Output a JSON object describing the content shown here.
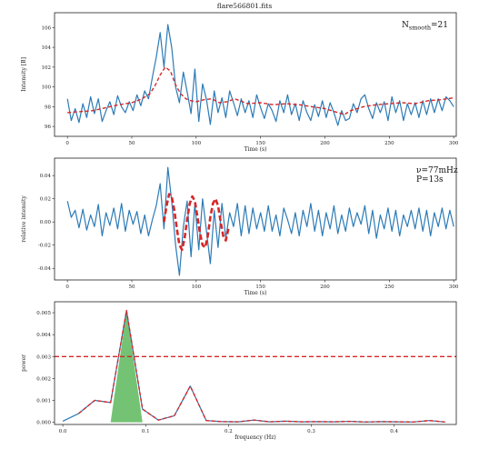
{
  "figure": {
    "title": "flare566801.fits"
  },
  "chart_data": [
    {
      "type": "line",
      "xlabel": "Time (s)",
      "ylabel": "Intensity [B]",
      "xlim": [
        -10,
        302
      ],
      "ylim": [
        95.0,
        107.5
      ],
      "xticks": [
        0,
        50,
        100,
        150,
        200,
        250,
        300
      ],
      "yticks": [
        96,
        98,
        100,
        102,
        104,
        106
      ],
      "annotation": {
        "base": "N",
        "sub": "smooth",
        "rest": "=21"
      },
      "series": [
        {
          "color": "#2c7bb6",
          "style": "solid",
          "x": [
            0,
            3,
            6,
            9,
            12,
            15,
            18,
            21,
            24,
            27,
            30,
            33,
            36,
            39,
            42,
            45,
            48,
            51,
            54,
            57,
            60,
            63,
            66,
            69,
            72,
            75,
            78,
            81,
            84,
            87,
            90,
            93,
            96,
            99,
            102,
            105,
            108,
            111,
            114,
            117,
            120,
            123,
            126,
            129,
            132,
            135,
            138,
            141,
            144,
            147,
            150,
            153,
            156,
            159,
            162,
            165,
            168,
            171,
            174,
            177,
            180,
            183,
            186,
            189,
            192,
            195,
            198,
            201,
            204,
            207,
            210,
            213,
            216,
            219,
            222,
            225,
            228,
            231,
            234,
            237,
            240,
            243,
            246,
            249,
            252,
            255,
            258,
            261,
            264,
            267,
            270,
            273,
            276,
            279,
            282,
            285,
            288,
            291,
            294,
            297,
            300
          ],
          "y": [
            98.8,
            96.6,
            97.8,
            96.4,
            98.3,
            96.9,
            99.0,
            97.3,
            98.8,
            96.5,
            97.6,
            98.5,
            97.2,
            99.1,
            98.0,
            97.4,
            98.5,
            97.6,
            99.2,
            98.1,
            99.6,
            98.8,
            101.0,
            103.0,
            105.5,
            102.0,
            106.3,
            104.0,
            100.0,
            98.4,
            101.5,
            99.5,
            97.3,
            101.8,
            96.5,
            100.3,
            98.7,
            96.2,
            99.6,
            97.4,
            98.9,
            96.9,
            99.6,
            98.4,
            97.1,
            98.8,
            97.4,
            98.6,
            96.9,
            99.2,
            97.9,
            96.8,
            98.3,
            97.6,
            96.5,
            98.6,
            97.4,
            99.2,
            97.2,
            98.3,
            96.6,
            98.6,
            97.4,
            96.6,
            98.2,
            97.0,
            98.6,
            96.9,
            98.4,
            97.4,
            96.1,
            97.6,
            96.6,
            96.8,
            98.3,
            97.4,
            98.8,
            99.2,
            97.8,
            96.8,
            98.4,
            97.4,
            98.5,
            96.6,
            99.0,
            97.4,
            98.6,
            96.6,
            98.3,
            97.2,
            98.4,
            96.9,
            98.6,
            97.2,
            98.8,
            97.4,
            98.8,
            97.6,
            99.0,
            98.6,
            98.0
          ]
        },
        {
          "color": "#d62728",
          "style": "dashed",
          "x": [
            0,
            10,
            20,
            30,
            40,
            50,
            58,
            64,
            68,
            72,
            76,
            80,
            84,
            88,
            92,
            96,
            100,
            106,
            112,
            118,
            124,
            130,
            140,
            150,
            160,
            170,
            180,
            190,
            200,
            210,
            215,
            220,
            230,
            240,
            250,
            260,
            270,
            280,
            290,
            300
          ],
          "y": [
            97.4,
            97.5,
            97.6,
            97.9,
            98.2,
            98.4,
            98.8,
            99.3,
            100.1,
            101.2,
            102.0,
            101.6,
            100.2,
            99.3,
            98.8,
            98.6,
            98.5,
            98.7,
            98.8,
            98.4,
            98.5,
            98.8,
            98.3,
            98.4,
            98.2,
            98.3,
            98.2,
            98.0,
            97.8,
            97.4,
            97.2,
            97.6,
            98.0,
            98.2,
            98.3,
            98.4,
            98.3,
            98.6,
            98.7,
            98.9
          ]
        }
      ]
    },
    {
      "type": "line",
      "xlabel": "Time (s)",
      "ylabel": "relative intensity",
      "xlim": [
        -10,
        302
      ],
      "ylim": [
        -0.05,
        0.055
      ],
      "xticks": [
        0,
        50,
        100,
        150,
        200,
        250,
        300
      ],
      "yticks": [
        -0.04,
        -0.02,
        0.0,
        0.02,
        0.04
      ],
      "annotation_lines": [
        "ν=77mHz",
        "P=13s"
      ],
      "series": [
        {
          "color": "#2c7bb6",
          "style": "solid",
          "x": [
            0,
            3,
            6,
            9,
            12,
            15,
            18,
            21,
            24,
            27,
            30,
            33,
            36,
            39,
            42,
            45,
            48,
            51,
            54,
            57,
            60,
            63,
            66,
            69,
            72,
            75,
            78,
            81,
            84,
            87,
            90,
            93,
            96,
            99,
            102,
            105,
            108,
            111,
            114,
            117,
            120,
            123,
            126,
            129,
            132,
            135,
            138,
            141,
            144,
            147,
            150,
            153,
            156,
            159,
            162,
            165,
            168,
            171,
            174,
            177,
            180,
            183,
            186,
            189,
            192,
            195,
            198,
            201,
            204,
            207,
            210,
            213,
            216,
            219,
            222,
            225,
            228,
            231,
            234,
            237,
            240,
            243,
            246,
            249,
            252,
            255,
            258,
            261,
            264,
            267,
            270,
            273,
            276,
            279,
            282,
            285,
            288,
            291,
            294,
            297,
            300
          ],
          "y": [
            0.018,
            0.004,
            0.01,
            -0.005,
            0.011,
            -0.007,
            0.006,
            -0.004,
            0.015,
            -0.012,
            0.008,
            -0.003,
            0.012,
            -0.006,
            0.016,
            -0.008,
            0.01,
            -0.002,
            0.009,
            -0.01,
            0.006,
            -0.012,
            0.002,
            0.014,
            0.033,
            -0.006,
            0.047,
            0.018,
            -0.02,
            -0.046,
            -0.004,
            0.018,
            -0.03,
            0.016,
            -0.024,
            0.02,
            -0.008,
            -0.036,
            0.01,
            -0.022,
            0.016,
            -0.014,
            0.008,
            -0.004,
            0.016,
            -0.012,
            0.014,
            -0.01,
            0.012,
            -0.006,
            0.008,
            -0.008,
            0.014,
            -0.008,
            0.006,
            -0.012,
            0.012,
            0.002,
            -0.01,
            0.008,
            -0.012,
            0.01,
            -0.004,
            0.016,
            -0.008,
            0.01,
            -0.012,
            0.008,
            -0.006,
            0.014,
            -0.01,
            0.006,
            -0.008,
            0.012,
            -0.004,
            0.008,
            -0.002,
            0.014,
            -0.01,
            0.01,
            -0.014,
            0.006,
            -0.006,
            0.012,
            -0.008,
            0.01,
            -0.012,
            0.006,
            -0.004,
            0.01,
            -0.006,
            0.012,
            -0.008,
            0.01,
            -0.012,
            0.008,
            -0.004,
            0.012,
            -0.006,
            0.01,
            -0.004
          ]
        },
        {
          "color": "#d62728",
          "style": "dashed",
          "x": [
            75,
            77,
            79,
            81,
            83,
            85,
            87,
            89,
            91,
            93,
            95,
            97,
            99,
            101,
            103,
            105,
            107,
            109,
            111,
            113,
            115,
            117,
            119,
            121,
            123,
            125
          ],
          "y": [
            0.0,
            0.014,
            0.024,
            0.022,
            0.01,
            -0.006,
            -0.02,
            -0.024,
            -0.014,
            0.002,
            0.016,
            0.022,
            0.018,
            0.004,
            -0.01,
            -0.02,
            -0.022,
            -0.012,
            0.004,
            0.016,
            0.02,
            0.014,
            0.0,
            -0.012,
            -0.016,
            -0.006
          ]
        }
      ]
    },
    {
      "type": "line",
      "xlabel": "frequency (Hz)",
      "ylabel": "power",
      "xlim": [
        -0.01,
        0.475
      ],
      "ylim": [
        -0.0001,
        0.0055
      ],
      "xticks": [
        0.0,
        0.1,
        0.2,
        0.3,
        0.4
      ],
      "yticks": [
        0.0,
        0.001,
        0.002,
        0.003,
        0.004,
        0.005
      ],
      "threshold": 0.003,
      "series": [
        {
          "color": "#2c7bb6",
          "style": "solid",
          "x": [
            0.0,
            0.0192,
            0.0385,
            0.0577,
            0.0769,
            0.0962,
            0.1154,
            0.1346,
            0.1538,
            0.1731,
            0.1923,
            0.2115,
            0.2308,
            0.25,
            0.2692,
            0.2885,
            0.3077,
            0.3269,
            0.3462,
            0.3654,
            0.3846,
            0.4038,
            0.4231,
            0.4423,
            0.4615
          ],
          "y": [
            5e-05,
            0.0004,
            0.001,
            0.0009,
            0.0051,
            0.0006,
            0.0001,
            0.0003,
            0.00165,
            8e-05,
            3e-05,
            2e-05,
            0.0001,
            2e-05,
            5e-05,
            2e-05,
            3e-05,
            2e-05,
            4e-05,
            1e-05,
            3e-05,
            2e-05,
            1e-05,
            8e-05,
            1e-05
          ]
        },
        {
          "color": "#d62728",
          "style": "dashed",
          "x": [
            0.0192,
            0.0385,
            0.0577,
            0.0769,
            0.0962,
            0.1154,
            0.1346,
            0.1538,
            0.1731,
            0.1923,
            0.2115,
            0.2308,
            0.25,
            0.2692,
            0.2885,
            0.3077,
            0.3269,
            0.3462,
            0.3654,
            0.3846,
            0.4038,
            0.4231,
            0.4423,
            0.4615
          ],
          "y": [
            0.0004,
            0.001,
            0.0009,
            0.0051,
            0.0006,
            0.0001,
            0.0003,
            0.00165,
            8e-05,
            3e-05,
            2e-05,
            0.0001,
            2e-05,
            5e-05,
            2e-05,
            3e-05,
            2e-05,
            4e-05,
            1e-05,
            3e-05,
            2e-05,
            1e-05,
            8e-05,
            1e-05
          ]
        }
      ],
      "fill": {
        "color": "#5cb85c",
        "x": [
          0.0577,
          0.0769,
          0.0962
        ],
        "y": [
          0.0,
          0.0051,
          0.0
        ]
      }
    }
  ]
}
